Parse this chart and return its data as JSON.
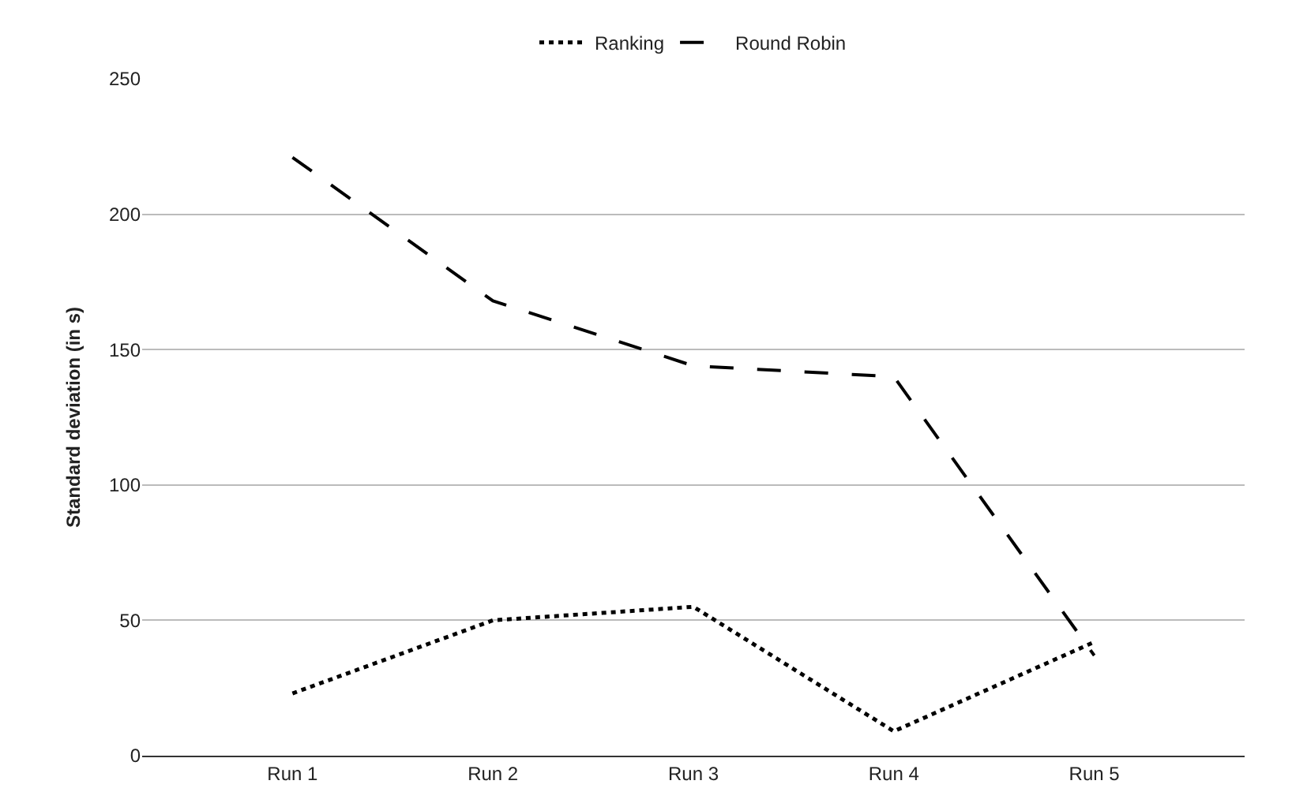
{
  "chart_data": {
    "type": "line",
    "ylabel": "Standard deviation (in s)",
    "categories": [
      "Run 1",
      "Run 2",
      "Run 3",
      "Run 4",
      "Run 5"
    ],
    "series": [
      {
        "name": "Ranking",
        "color": "#000000",
        "line_style": "dotted",
        "values": [
          23,
          50,
          55,
          9,
          42
        ]
      },
      {
        "name": "Round Robin",
        "color": "#000000",
        "line_style": "dashed",
        "values": [
          221,
          168,
          144,
          140,
          37
        ]
      }
    ],
    "ylim": [
      0,
      250
    ],
    "yticks": [
      0,
      50,
      100,
      150,
      200,
      250
    ],
    "grid": "y",
    "legend": "top",
    "marker": "none"
  }
}
